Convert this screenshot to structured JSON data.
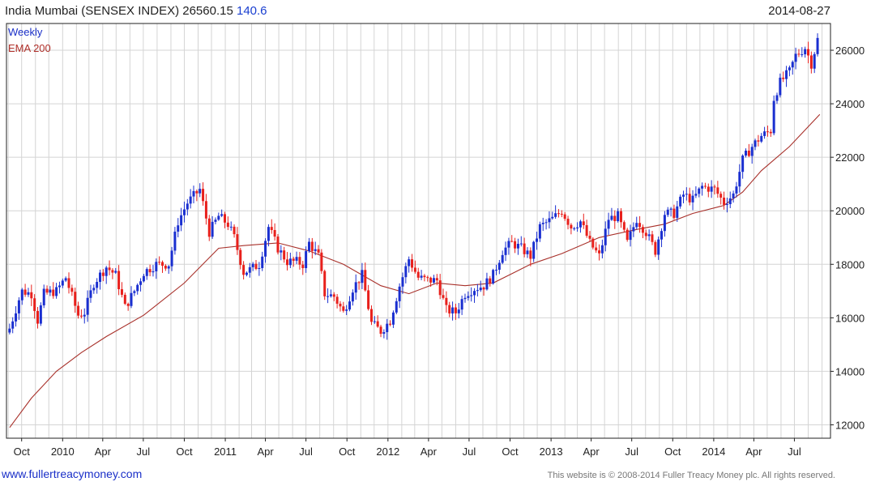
{
  "header": {
    "title": "India Mumbai (SENSEX INDEX) 26560.15",
    "change": "140.6",
    "date": "2014-08-27"
  },
  "legend": {
    "weekly": "Weekly",
    "ema": "EMA 200"
  },
  "footer": {
    "link": "www.fullertreacymoney.com",
    "copyright": "This website is © 2008-2014 Fuller Treacy Money plc. All rights reserved."
  },
  "colors": {
    "up": "#1a2fd0",
    "down": "#e8201c",
    "ema": "#a8302a",
    "grid": "#d4d4d4"
  },
  "chart_data": {
    "type": "candlestick",
    "frequency": "weekly",
    "ylim": [
      11500,
      27000
    ],
    "yticks": [
      12000,
      14000,
      16000,
      18000,
      20000,
      22000,
      24000,
      26000
    ],
    "ytick_labels": [
      "12000",
      "14000",
      "16000",
      "18000",
      "20000",
      "22000",
      "24000",
      "26000"
    ],
    "xticks": [
      {
        "date": "2009-10-01",
        "label": "Oct"
      },
      {
        "date": "2010-01-01",
        "label": "2010"
      },
      {
        "date": "2010-04-01",
        "label": "Apr"
      },
      {
        "date": "2010-07-01",
        "label": "Jul"
      },
      {
        "date": "2010-10-01",
        "label": "Oct"
      },
      {
        "date": "2011-01-01",
        "label": "2011"
      },
      {
        "date": "2011-04-01",
        "label": "Apr"
      },
      {
        "date": "2011-07-01",
        "label": "Jul"
      },
      {
        "date": "2011-10-01",
        "label": "Oct"
      },
      {
        "date": "2012-01-01",
        "label": "2012"
      },
      {
        "date": "2012-04-01",
        "label": "Apr"
      },
      {
        "date": "2012-07-01",
        "label": "Jul"
      },
      {
        "date": "2012-10-01",
        "label": "Oct"
      },
      {
        "date": "2013-01-01",
        "label": "2013"
      },
      {
        "date": "2013-04-01",
        "label": "Apr"
      },
      {
        "date": "2013-07-01",
        "label": "Jul"
      },
      {
        "date": "2013-10-01",
        "label": "Oct"
      },
      {
        "date": "2014-01-01",
        "label": "2014"
      },
      {
        "date": "2014-04-01",
        "label": "Apr"
      },
      {
        "date": "2014-07-01",
        "label": "Jul"
      }
    ],
    "x_range": [
      "2009-08-28",
      "2014-09-20"
    ],
    "series": [
      {
        "name": "Weekly",
        "kind": "close",
        "points": [
          [
            "2009-09-04",
            15600
          ],
          [
            "2009-10-01",
            17000
          ],
          [
            "2009-10-23",
            16900
          ],
          [
            "2009-11-06",
            15900
          ],
          [
            "2009-11-20",
            16900
          ],
          [
            "2009-12-18",
            17000
          ],
          [
            "2010-01-08",
            17500
          ],
          [
            "2010-02-05",
            16100
          ],
          [
            "2010-02-19",
            16200
          ],
          [
            "2010-03-12",
            17300
          ],
          [
            "2010-04-09",
            17900
          ],
          [
            "2010-04-30",
            17600
          ],
          [
            "2010-05-21",
            16400
          ],
          [
            "2010-06-11",
            17000
          ],
          [
            "2010-07-02",
            17700
          ],
          [
            "2010-07-30",
            18000
          ],
          [
            "2010-08-27",
            18000
          ],
          [
            "2010-09-17",
            19600
          ],
          [
            "2010-10-08",
            20300
          ],
          [
            "2010-11-05",
            20800
          ],
          [
            "2010-11-26",
            19200
          ],
          [
            "2010-12-17",
            19800
          ],
          [
            "2011-01-07",
            19500
          ],
          [
            "2011-01-21",
            19000
          ],
          [
            "2011-02-11",
            17700
          ],
          [
            "2011-02-25",
            17800
          ],
          [
            "2011-03-18",
            18000
          ],
          [
            "2011-04-08",
            19400
          ],
          [
            "2011-04-29",
            18600
          ],
          [
            "2011-05-20",
            18100
          ],
          [
            "2011-06-10",
            18100
          ],
          [
            "2011-06-24",
            18000
          ],
          [
            "2011-07-08",
            18800
          ],
          [
            "2011-07-29",
            18300
          ],
          [
            "2011-08-12",
            16900
          ],
          [
            "2011-09-02",
            16800
          ],
          [
            "2011-09-23",
            16200
          ],
          [
            "2011-10-14",
            17100
          ],
          [
            "2011-11-04",
            17600
          ],
          [
            "2011-11-25",
            15800
          ],
          [
            "2011-12-16",
            15500
          ],
          [
            "2012-01-06",
            15900
          ],
          [
            "2012-01-27",
            17200
          ],
          [
            "2012-02-17",
            18200
          ],
          [
            "2012-03-09",
            17500
          ],
          [
            "2012-03-30",
            17400
          ],
          [
            "2012-04-20",
            17400
          ],
          [
            "2012-05-11",
            16300
          ],
          [
            "2012-06-01",
            16200
          ],
          [
            "2012-06-22",
            16900
          ],
          [
            "2012-07-13",
            17100
          ],
          [
            "2012-08-03",
            17200
          ],
          [
            "2012-08-24",
            17600
          ],
          [
            "2012-09-14",
            18500
          ],
          [
            "2012-10-05",
            18800
          ],
          [
            "2012-10-26",
            18600
          ],
          [
            "2012-11-16",
            18300
          ],
          [
            "2012-12-07",
            19400
          ],
          [
            "2013-01-04",
            19700
          ],
          [
            "2013-01-25",
            20000
          ],
          [
            "2013-02-15",
            19400
          ],
          [
            "2013-03-08",
            19600
          ],
          [
            "2013-03-29",
            18800
          ],
          [
            "2013-04-19",
            18300
          ],
          [
            "2013-05-10",
            19700
          ],
          [
            "2013-05-31",
            19800
          ],
          [
            "2013-06-21",
            18800
          ],
          [
            "2013-07-12",
            19700
          ],
          [
            "2013-08-02",
            19200
          ],
          [
            "2013-08-23",
            18500
          ],
          [
            "2013-09-13",
            19900
          ],
          [
            "2013-10-04",
            19900
          ],
          [
            "2013-10-25",
            20600
          ],
          [
            "2013-11-15",
            20400
          ],
          [
            "2013-12-06",
            20900
          ],
          [
            "2014-01-03",
            20800
          ],
          [
            "2014-01-24",
            20300
          ],
          [
            "2014-02-14",
            20600
          ],
          [
            "2014-03-07",
            21900
          ],
          [
            "2014-03-28",
            22400
          ],
          [
            "2014-04-18",
            22800
          ],
          [
            "2014-05-09",
            23000
          ],
          [
            "2014-05-16",
            24200
          ],
          [
            "2014-05-30",
            24800
          ],
          [
            "2014-06-20",
            25200
          ],
          [
            "2014-07-04",
            25800
          ],
          [
            "2014-07-25",
            26100
          ],
          [
            "2014-08-08",
            25500
          ],
          [
            "2014-08-22",
            26400
          ],
          [
            "2014-08-27",
            26560
          ]
        ]
      },
      {
        "name": "EMA 200",
        "kind": "line",
        "points": [
          [
            "2009-09-04",
            11900
          ],
          [
            "2009-10-23",
            13000
          ],
          [
            "2009-12-18",
            14000
          ],
          [
            "2010-02-12",
            14700
          ],
          [
            "2010-04-09",
            15300
          ],
          [
            "2010-07-02",
            16100
          ],
          [
            "2010-10-01",
            17300
          ],
          [
            "2010-12-17",
            18600
          ],
          [
            "2011-02-11",
            18700
          ],
          [
            "2011-04-29",
            18800
          ],
          [
            "2011-07-08",
            18500
          ],
          [
            "2011-09-23",
            18000
          ],
          [
            "2011-12-16",
            17200
          ],
          [
            "2012-02-17",
            16900
          ],
          [
            "2012-04-20",
            17300
          ],
          [
            "2012-06-22",
            17200
          ],
          [
            "2012-08-24",
            17300
          ],
          [
            "2012-11-16",
            18000
          ],
          [
            "2013-01-25",
            18400
          ],
          [
            "2013-04-19",
            19000
          ],
          [
            "2013-07-12",
            19300
          ],
          [
            "2013-09-13",
            19500
          ],
          [
            "2013-11-15",
            19900
          ],
          [
            "2014-01-24",
            20200
          ],
          [
            "2014-03-07",
            20700
          ],
          [
            "2014-04-18",
            21500
          ],
          [
            "2014-06-20",
            22400
          ],
          [
            "2014-08-27",
            23600
          ]
        ]
      }
    ]
  }
}
